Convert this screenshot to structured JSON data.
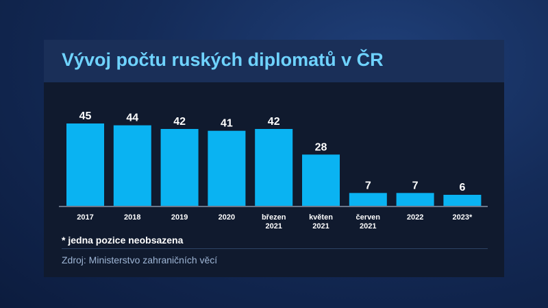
{
  "title": "Vývoj počtu ruských diplomatů v ČR",
  "footnote": "* jedna pozice neobsazena",
  "source": "Zdroj: Ministerstvo zahraničních věcí",
  "colors": {
    "bar": "#0ab3f2",
    "title": "#6fd3ff"
  },
  "chart_data": {
    "type": "bar",
    "title": "Vývoj počtu ruských diplomatů v ČR",
    "categories": [
      [
        "2017"
      ],
      [
        "2018"
      ],
      [
        "2019"
      ],
      [
        "2020"
      ],
      [
        "březen",
        "2021"
      ],
      [
        "květen",
        "2021"
      ],
      [
        "červen",
        "2021"
      ],
      [
        "2022"
      ],
      [
        "2023*"
      ]
    ],
    "values": [
      45,
      44,
      42,
      41,
      42,
      28,
      7,
      7,
      6
    ],
    "xlabel": "",
    "ylabel": "",
    "ylim": [
      0,
      45
    ],
    "grid": false
  }
}
